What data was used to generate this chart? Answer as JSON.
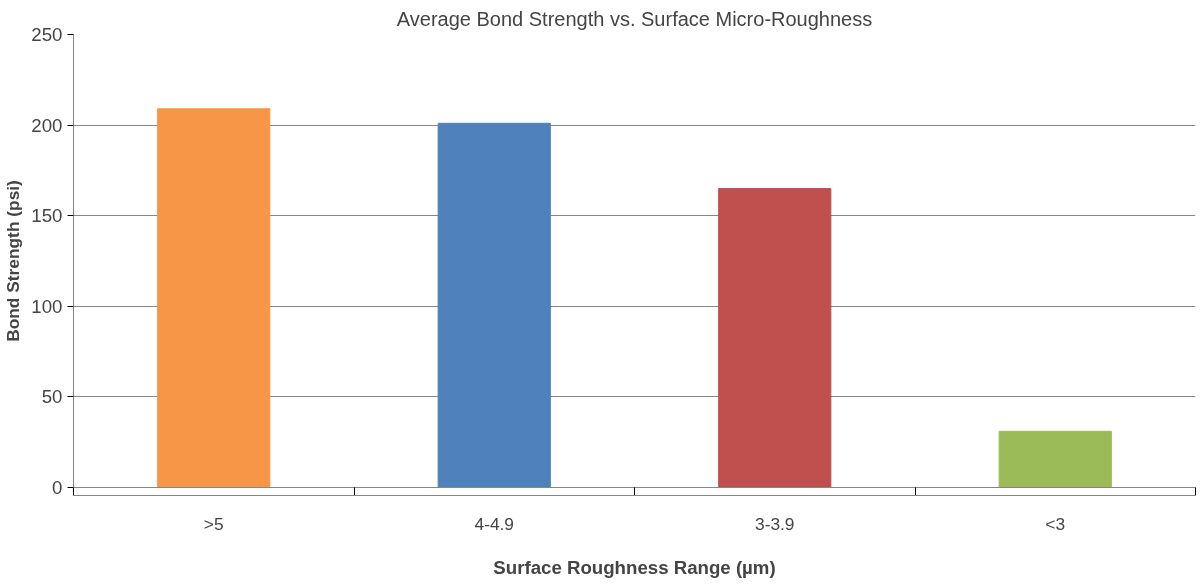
{
  "chart_data": {
    "type": "bar",
    "title": "Average Bond Strength vs. Surface Micro-Roughness",
    "xlabel": "Surface Roughness Range (µm)",
    "ylabel": "Bond Strength (psi)",
    "categories": [
      ">5",
      "4-4.9",
      "3-3.9",
      "<3"
    ],
    "values": [
      209,
      201,
      165,
      31
    ],
    "colors": [
      "#f79646",
      "#4f81bd",
      "#c0504d",
      "#9bbb59"
    ],
    "ylim": [
      0,
      250
    ],
    "yticks": [
      0,
      50,
      100,
      150,
      200,
      250
    ],
    "grid": "y"
  }
}
